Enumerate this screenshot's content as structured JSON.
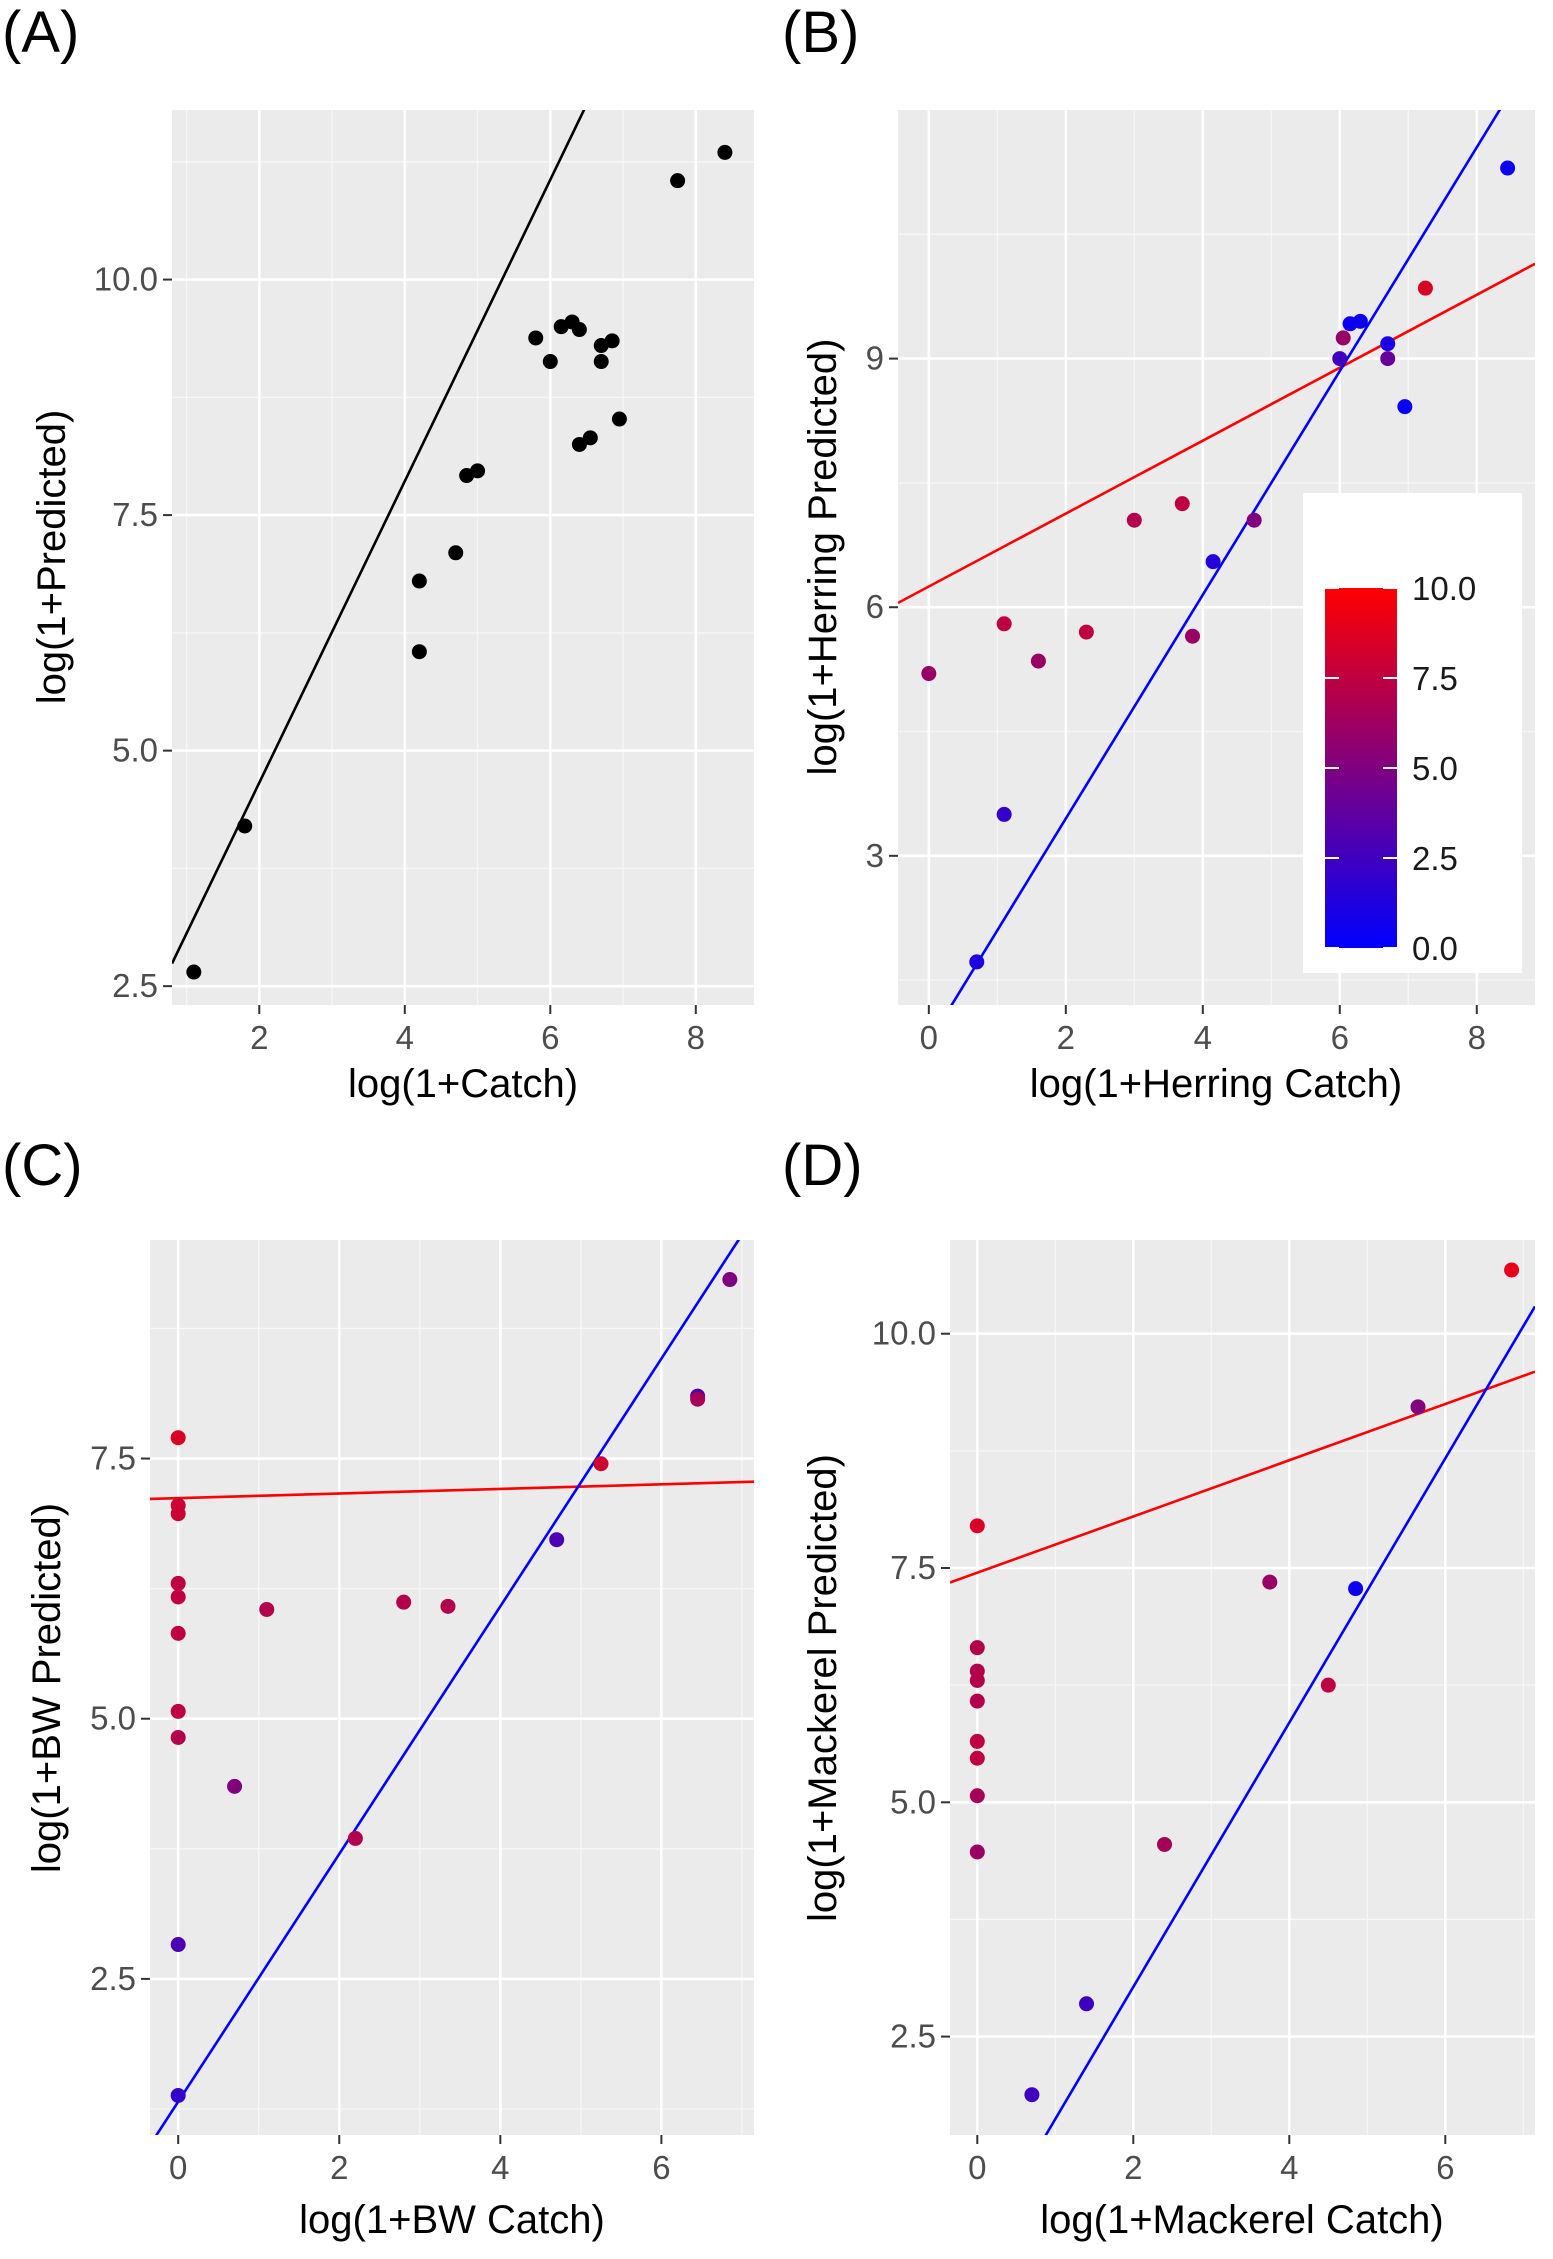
{
  "chart_data": [
    {
      "type": "scatter",
      "panel_label": "(A)",
      "xlabel": "log(1+Catch)",
      "ylabel": "log(1+Predicted)",
      "xlim": [
        0.8,
        8.8
      ],
      "ylim": [
        2.3,
        11.8
      ],
      "xticks": [
        {
          "v": 2,
          "label": "2"
        },
        {
          "v": 4,
          "label": "4"
        },
        {
          "v": 6,
          "label": "6"
        },
        {
          "v": 8,
          "label": "8"
        }
      ],
      "yticks": [
        {
          "v": 2.5,
          "label": "2.5"
        },
        {
          "v": 5.0,
          "label": "5.0"
        },
        {
          "v": 7.5,
          "label": "7.5"
        },
        {
          "v": 10.0,
          "label": "10.0"
        }
      ],
      "grid": true,
      "point_color": "#000000",
      "points": [
        {
          "x": 1.1,
          "y": 2.65
        },
        {
          "x": 1.8,
          "y": 4.2
        },
        {
          "x": 4.2,
          "y": 6.8
        },
        {
          "x": 4.2,
          "y": 6.05
        },
        {
          "x": 4.7,
          "y": 7.1
        },
        {
          "x": 4.85,
          "y": 7.92
        },
        {
          "x": 5.0,
          "y": 7.97
        },
        {
          "x": 5.8,
          "y": 9.38
        },
        {
          "x": 6.0,
          "y": 9.13
        },
        {
          "x": 6.15,
          "y": 9.5
        },
        {
          "x": 6.3,
          "y": 9.55
        },
        {
          "x": 6.4,
          "y": 9.47
        },
        {
          "x": 6.4,
          "y": 8.25
        },
        {
          "x": 6.55,
          "y": 8.32
        },
        {
          "x": 6.7,
          "y": 9.3
        },
        {
          "x": 6.7,
          "y": 9.13
        },
        {
          "x": 6.85,
          "y": 9.35
        },
        {
          "x": 6.95,
          "y": 8.52
        },
        {
          "x": 7.75,
          "y": 11.05
        },
        {
          "x": 8.4,
          "y": 11.35
        }
      ],
      "lines": [
        {
          "color": "#000000",
          "intercept": 1.46,
          "slope": 1.6
        }
      ]
    },
    {
      "type": "scatter",
      "panel_label": "(B)",
      "xlabel": "log(1+Herring Catch)",
      "ylabel": "log(1+Herring Predicted)",
      "xlim": [
        -0.45,
        8.85
      ],
      "ylim": [
        1.2,
        12.0
      ],
      "xticks": [
        {
          "v": 0,
          "label": "0"
        },
        {
          "v": 2,
          "label": "2"
        },
        {
          "v": 4,
          "label": "4"
        },
        {
          "v": 6,
          "label": "6"
        },
        {
          "v": 8,
          "label": "8"
        }
      ],
      "yticks": [
        {
          "v": 3,
          "label": "3"
        },
        {
          "v": 6,
          "label": "6"
        },
        {
          "v": 9,
          "label": "9"
        }
      ],
      "grid": true,
      "points": [
        {
          "x": 0.0,
          "y": 5.2,
          "c": 6.0
        },
        {
          "x": 0.7,
          "y": 1.72,
          "c": 1.2
        },
        {
          "x": 1.1,
          "y": 5.8,
          "c": 7.5
        },
        {
          "x": 1.1,
          "y": 3.5,
          "c": 2.0
        },
        {
          "x": 1.6,
          "y": 5.35,
          "c": 6.0
        },
        {
          "x": 2.3,
          "y": 5.7,
          "c": 7.5
        },
        {
          "x": 3.0,
          "y": 7.05,
          "c": 7.0
        },
        {
          "x": 3.7,
          "y": 7.25,
          "c": 7.5
        },
        {
          "x": 3.85,
          "y": 5.65,
          "c": 6.0
        },
        {
          "x": 4.15,
          "y": 6.55,
          "c": 1.5
        },
        {
          "x": 4.75,
          "y": 7.05,
          "c": 5.0
        },
        {
          "x": 6.0,
          "y": 9.0,
          "c": 2.5
        },
        {
          "x": 6.05,
          "y": 9.25,
          "c": 6.0
        },
        {
          "x": 6.15,
          "y": 9.42,
          "c": 0.5
        },
        {
          "x": 6.3,
          "y": 9.45,
          "c": 0.5
        },
        {
          "x": 6.7,
          "y": 9.18,
          "c": 1.0
        },
        {
          "x": 6.7,
          "y": 9.0,
          "c": 4.0
        },
        {
          "x": 6.95,
          "y": 8.42,
          "c": 0.3
        },
        {
          "x": 7.25,
          "y": 9.85,
          "c": 8.5
        },
        {
          "x": 8.45,
          "y": 11.3,
          "c": 0.5
        }
      ],
      "lines": [
        {
          "color": "#ff0000",
          "intercept": 6.25,
          "slope": 0.44
        },
        {
          "color": "#0000ff",
          "intercept": 0.75,
          "slope": 1.35
        }
      ],
      "colorbar": {
        "min": 0.0,
        "max": 10.0,
        "low_color": "#0000ff",
        "high_color": "#ff0000",
        "ticks": [
          {
            "v": 0.0,
            "label": "0.0"
          },
          {
            "v": 2.5,
            "label": "2.5"
          },
          {
            "v": 5.0,
            "label": "5.0"
          },
          {
            "v": 7.5,
            "label": "7.5"
          },
          {
            "v": 10.0,
            "label": "10.0"
          }
        ],
        "placement": "right-middle inside"
      }
    },
    {
      "type": "scatter",
      "panel_label": "(C)",
      "xlabel": "log(1+BW Catch)",
      "ylabel": "log(1+BW Predicted)",
      "xlim": [
        -0.35,
        7.15
      ],
      "ylim": [
        1.0,
        9.6
      ],
      "xticks": [
        {
          "v": 0,
          "label": "0"
        },
        {
          "v": 2,
          "label": "2"
        },
        {
          "v": 4,
          "label": "4"
        },
        {
          "v": 6,
          "label": "6"
        }
      ],
      "yticks": [
        {
          "v": 2.5,
          "label": "2.5"
        },
        {
          "v": 5.0,
          "label": "5.0"
        },
        {
          "v": 7.5,
          "label": "7.5"
        }
      ],
      "grid": true,
      "points": [
        {
          "x": 0.0,
          "y": 7.7,
          "c": 8.5
        },
        {
          "x": 0.0,
          "y": 7.05,
          "c": 8.0
        },
        {
          "x": 0.0,
          "y": 6.97,
          "c": 8.0
        },
        {
          "x": 0.0,
          "y": 6.3,
          "c": 7.5
        },
        {
          "x": 0.0,
          "y": 6.17,
          "c": 7.5
        },
        {
          "x": 0.0,
          "y": 5.82,
          "c": 7.5
        },
        {
          "x": 0.0,
          "y": 5.07,
          "c": 7.5
        },
        {
          "x": 0.0,
          "y": 4.82,
          "c": 7.0
        },
        {
          "x": 0.0,
          "y": 2.83,
          "c": 3.0
        },
        {
          "x": 0.0,
          "y": 1.38,
          "c": 2.0
        },
        {
          "x": 0.7,
          "y": 4.35,
          "c": 5.0
        },
        {
          "x": 1.1,
          "y": 6.05,
          "c": 7.0
        },
        {
          "x": 2.2,
          "y": 3.85,
          "c": 7.0
        },
        {
          "x": 2.8,
          "y": 6.12,
          "c": 7.0
        },
        {
          "x": 3.35,
          "y": 6.08,
          "c": 7.0
        },
        {
          "x": 4.7,
          "y": 6.72,
          "c": 3.0
        },
        {
          "x": 5.25,
          "y": 7.45,
          "c": 8.0
        },
        {
          "x": 6.45,
          "y": 8.1,
          "c": 3.0
        },
        {
          "x": 6.45,
          "y": 8.07,
          "c": 6.5
        },
        {
          "x": 6.85,
          "y": 9.22,
          "c": 5.0
        }
      ],
      "lines": [
        {
          "color": "#ff0000",
          "intercept": 7.12,
          "slope": 0.022
        },
        {
          "color": "#0000ff",
          "intercept": 1.32,
          "slope": 1.19
        }
      ]
    },
    {
      "type": "scatter",
      "panel_label": "(D)",
      "xlabel": "log(1+Mackerel Catch)",
      "ylabel": "log(1+Mackerel Predicted)",
      "xlim": [
        -0.35,
        7.15
      ],
      "ylim": [
        1.45,
        11.0
      ],
      "xticks": [
        {
          "v": 0,
          "label": "0"
        },
        {
          "v": 2,
          "label": "2"
        },
        {
          "v": 4,
          "label": "4"
        },
        {
          "v": 6,
          "label": "6"
        }
      ],
      "yticks": [
        {
          "v": 2.5,
          "label": "2.5"
        },
        {
          "v": 5.0,
          "label": "5.0"
        },
        {
          "v": 7.5,
          "label": "7.5"
        },
        {
          "v": 10.0,
          "label": "10.0"
        }
      ],
      "grid": true,
      "points": [
        {
          "x": 0.0,
          "y": 7.95,
          "c": 8.5
        },
        {
          "x": 0.0,
          "y": 6.65,
          "c": 7.0
        },
        {
          "x": 0.0,
          "y": 6.4,
          "c": 7.0
        },
        {
          "x": 0.0,
          "y": 6.3,
          "c": 7.0
        },
        {
          "x": 0.0,
          "y": 6.08,
          "c": 7.0
        },
        {
          "x": 0.0,
          "y": 5.65,
          "c": 7.5
        },
        {
          "x": 0.0,
          "y": 5.47,
          "c": 7.5
        },
        {
          "x": 0.0,
          "y": 5.07,
          "c": 6.5
        },
        {
          "x": 0.0,
          "y": 4.47,
          "c": 6.0
        },
        {
          "x": 0.7,
          "y": 1.88,
          "c": 2.5
        },
        {
          "x": 1.4,
          "y": 2.85,
          "c": 2.5
        },
        {
          "x": 2.4,
          "y": 4.55,
          "c": 6.5
        },
        {
          "x": 3.75,
          "y": 7.35,
          "c": 6.0
        },
        {
          "x": 4.5,
          "y": 6.25,
          "c": 7.5
        },
        {
          "x": 4.85,
          "y": 7.28,
          "c": 0.5
        },
        {
          "x": 5.65,
          "y": 9.22,
          "c": 5.0
        },
        {
          "x": 6.85,
          "y": 10.68,
          "c": 9.0
        }
      ],
      "lines": [
        {
          "color": "#ff0000",
          "intercept": 7.45,
          "slope": 0.3
        },
        {
          "color": "#0000ff",
          "intercept": 0.21,
          "slope": 1.41
        }
      ]
    }
  ]
}
